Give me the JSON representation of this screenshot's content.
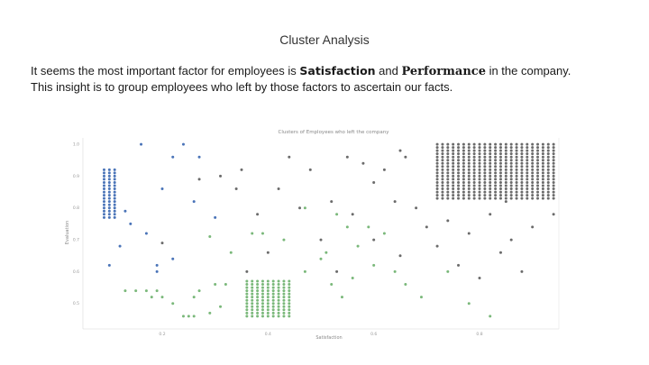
{
  "slide": {
    "title": "Cluster Analysis",
    "body": {
      "line1_prefix": "It seems the most important factor for employees is ",
      "keyword1": "Satisfaction",
      "line1_middle": " and ",
      "keyword2": "Performance",
      "line1_suffix": " in the company.",
      "line2": "This insight is to group employees who left by those factors to ascertain our facts."
    }
  },
  "chart_data": {
    "type": "scatter",
    "title": "Clusters of Employees who left the company",
    "xlabel": "Satisfaction",
    "ylabel": "Evaluation",
    "xlim": [
      0.05,
      0.95
    ],
    "ylim": [
      0.42,
      1.02
    ],
    "x_ticks": [
      "0.2",
      "0.4",
      "0.6",
      "0.8"
    ],
    "y_ticks": [
      "1.0",
      "0.9",
      "0.8",
      "0.7",
      "0.6",
      "0.5"
    ],
    "colors": {
      "blue": "#4a74b8",
      "green": "#7ab87a",
      "gray": "#6b6b6b"
    },
    "clusters": [
      {
        "color": "blue",
        "grid": {
          "x_from": 0.09,
          "x_to": 0.11,
          "x_step": 0.01,
          "y_from": 0.77,
          "y_to": 0.92,
          "y_step": 0.01
        },
        "extra": [
          [
            0.16,
            1.0
          ],
          [
            0.24,
            1.0
          ],
          [
            0.27,
            0.96
          ],
          [
            0.2,
            0.86
          ],
          [
            0.26,
            0.82
          ],
          [
            0.17,
            0.72
          ],
          [
            0.12,
            0.68
          ],
          [
            0.1,
            0.62
          ],
          [
            0.22,
            0.64
          ],
          [
            0.19,
            0.6
          ],
          [
            0.3,
            0.77
          ],
          [
            0.13,
            0.79
          ],
          [
            0.22,
            0.96
          ],
          [
            0.14,
            0.75
          ],
          [
            0.19,
            0.62
          ]
        ]
      },
      {
        "color": "green",
        "grid": {
          "x_from": 0.36,
          "x_to": 0.44,
          "x_step": 0.01,
          "y_from": 0.46,
          "y_to": 0.57,
          "y_step": 0.01
        },
        "extra": [
          [
            0.13,
            0.54
          ],
          [
            0.15,
            0.54
          ],
          [
            0.17,
            0.54
          ],
          [
            0.19,
            0.54
          ],
          [
            0.2,
            0.52
          ],
          [
            0.27,
            0.54
          ],
          [
            0.3,
            0.56
          ],
          [
            0.32,
            0.56
          ],
          [
            0.26,
            0.52
          ],
          [
            0.24,
            0.46
          ],
          [
            0.25,
            0.46
          ],
          [
            0.26,
            0.46
          ],
          [
            0.29,
            0.47
          ],
          [
            0.31,
            0.49
          ],
          [
            0.33,
            0.66
          ],
          [
            0.37,
            0.72
          ],
          [
            0.43,
            0.7
          ],
          [
            0.47,
            0.6
          ],
          [
            0.5,
            0.64
          ],
          [
            0.51,
            0.66
          ],
          [
            0.53,
            0.78
          ],
          [
            0.55,
            0.74
          ],
          [
            0.57,
            0.68
          ],
          [
            0.52,
            0.56
          ],
          [
            0.54,
            0.52
          ],
          [
            0.56,
            0.58
          ],
          [
            0.6,
            0.62
          ],
          [
            0.62,
            0.72
          ],
          [
            0.64,
            0.6
          ],
          [
            0.66,
            0.56
          ],
          [
            0.69,
            0.52
          ],
          [
            0.74,
            0.6
          ],
          [
            0.78,
            0.5
          ],
          [
            0.82,
            0.46
          ],
          [
            0.18,
            0.52
          ],
          [
            0.22,
            0.5
          ],
          [
            0.29,
            0.71
          ],
          [
            0.39,
            0.72
          ],
          [
            0.47,
            0.8
          ],
          [
            0.59,
            0.74
          ]
        ]
      },
      {
        "color": "gray",
        "grid": {
          "x_from": 0.72,
          "x_to": 0.94,
          "x_step": 0.01,
          "y_from": 0.83,
          "y_to": 1.0,
          "y_step": 0.01
        },
        "extra": [
          [
            0.65,
            0.98
          ],
          [
            0.66,
            0.96
          ],
          [
            0.62,
            0.92
          ],
          [
            0.58,
            0.94
          ],
          [
            0.6,
            0.88
          ],
          [
            0.55,
            0.96
          ],
          [
            0.44,
            0.96
          ],
          [
            0.48,
            0.92
          ],
          [
            0.42,
            0.86
          ],
          [
            0.46,
            0.8
          ],
          [
            0.52,
            0.82
          ],
          [
            0.56,
            0.78
          ],
          [
            0.64,
            0.82
          ],
          [
            0.68,
            0.8
          ],
          [
            0.7,
            0.74
          ],
          [
            0.72,
            0.68
          ],
          [
            0.76,
            0.62
          ],
          [
            0.8,
            0.58
          ],
          [
            0.84,
            0.66
          ],
          [
            0.86,
            0.7
          ],
          [
            0.9,
            0.74
          ],
          [
            0.94,
            0.78
          ],
          [
            0.88,
            0.6
          ],
          [
            0.82,
            0.78
          ],
          [
            0.78,
            0.72
          ],
          [
            0.74,
            0.76
          ],
          [
            0.6,
            0.7
          ],
          [
            0.35,
            0.92
          ],
          [
            0.38,
            0.78
          ],
          [
            0.34,
            0.86
          ],
          [
            0.31,
            0.9
          ],
          [
            0.4,
            0.66
          ],
          [
            0.5,
            0.7
          ],
          [
            0.65,
            0.65
          ],
          [
            0.2,
            0.69
          ],
          [
            0.27,
            0.89
          ],
          [
            0.36,
            0.6
          ],
          [
            0.53,
            0.6
          ],
          [
            0.85,
            0.82
          ]
        ]
      }
    ],
    "grid": false,
    "legend": "none"
  }
}
